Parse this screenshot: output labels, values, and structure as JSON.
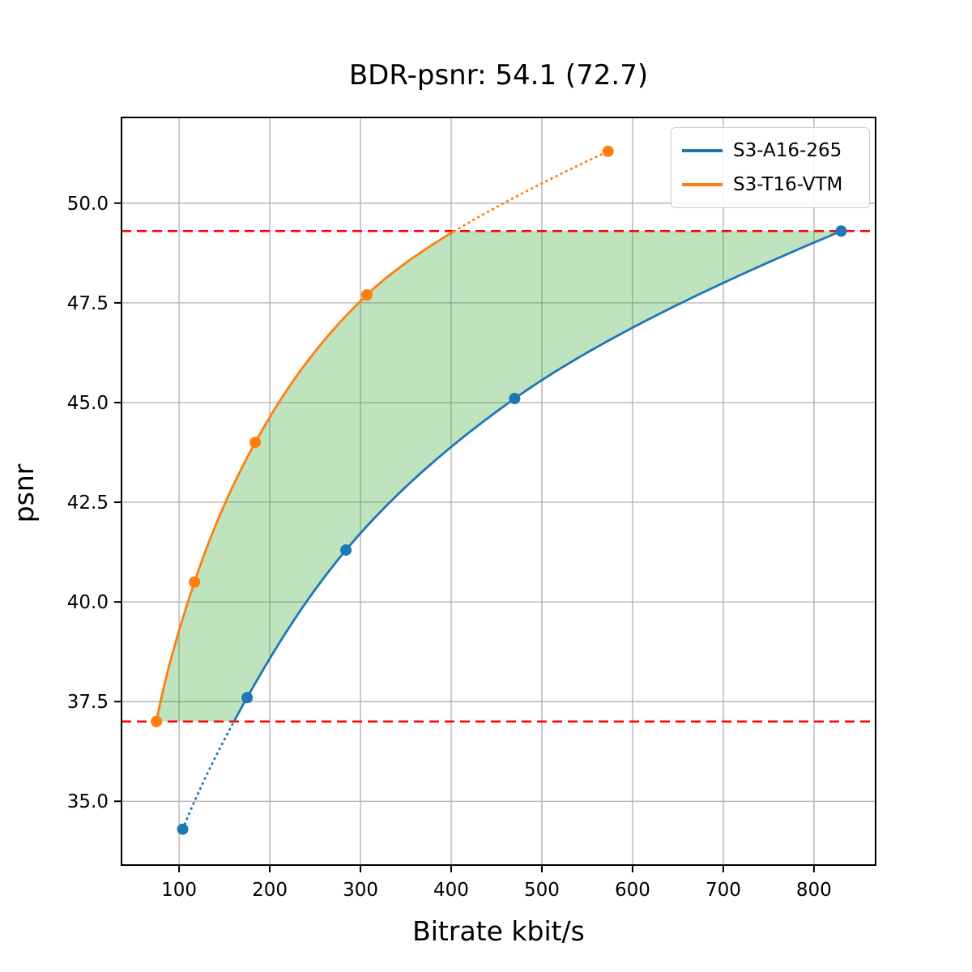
{
  "figure": {
    "title": "BDR-psnr: 54.1 (72.7)",
    "bdr_value": "54.1",
    "bdr_value_paren": "72.7"
  },
  "chart_data": {
    "type": "line",
    "title": "BDR-psnr: 54.1 (72.7)",
    "xlabel": "Bitrate kbit/s",
    "ylabel": "psnr",
    "xlim": [
      36.5,
      868
    ],
    "ylim": [
      33.4,
      52.15
    ],
    "x_ticks": [
      100,
      200,
      300,
      400,
      500,
      600,
      700,
      800
    ],
    "y_ticks": [
      35.0,
      37.5,
      40.0,
      42.5,
      45.0,
      47.5,
      50.0
    ],
    "grid": true,
    "grid_color": "#b0b0b0",
    "legend_position": "upper right",
    "series": [
      {
        "name": "S3-A16-265",
        "color": "#1f77b4",
        "x": [
          104,
          175,
          284,
          470,
          830
        ],
        "y": [
          34.3,
          37.6,
          41.3,
          45.1,
          49.3
        ],
        "solid_psnr_range": [
          37.0,
          49.3
        ],
        "dotted_psnr_range": [
          34.3,
          37.0
        ]
      },
      {
        "name": "S3-T16-VTM",
        "color": "#ff7f0e",
        "x": [
          75,
          117,
          184,
          307,
          573
        ],
        "y": [
          37.0,
          40.5,
          44.0,
          47.7,
          51.3
        ],
        "solid_psnr_range": [
          37.0,
          49.3
        ],
        "dotted_psnr_range": [
          49.3,
          51.3
        ]
      }
    ],
    "overlap_hlines": {
      "values": [
        49.3,
        37.0
      ],
      "color": "#ff0000",
      "style": "dashed"
    },
    "shaded_region": {
      "psnr_range": [
        37.0,
        49.3
      ],
      "color": "#2ca02c",
      "opacity": 0.3
    }
  }
}
